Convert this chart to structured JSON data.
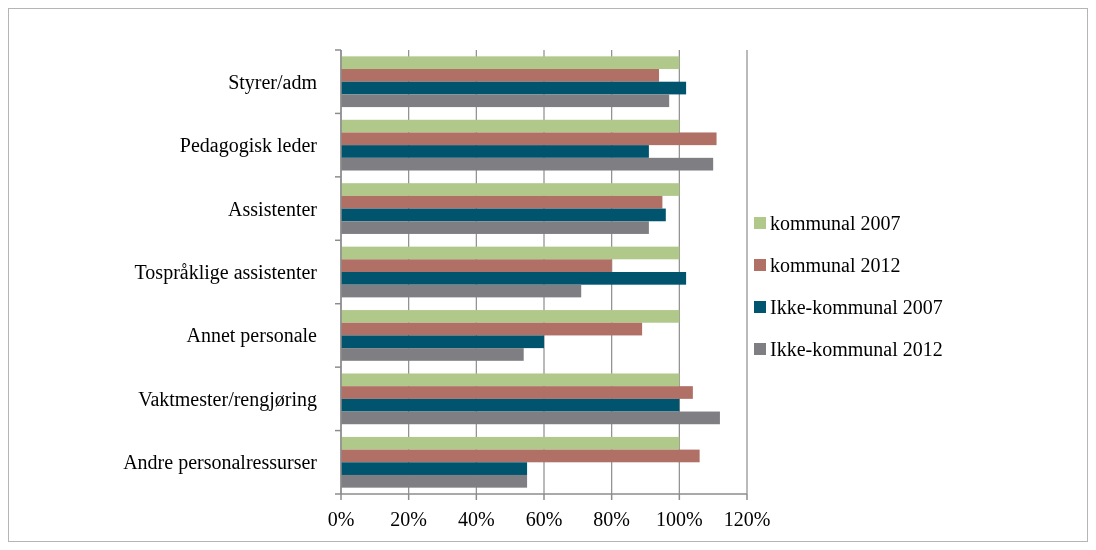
{
  "chart_data": {
    "type": "bar",
    "orientation": "horizontal",
    "categories": [
      "Styrer/adm",
      "Pedagogisk leder",
      "Assistenter",
      "Tospråklige assistenter",
      "Annet personale",
      "Vaktmester/rengjøring",
      "Andre personalressurser"
    ],
    "series": [
      {
        "name": "kommunal 2007",
        "color": "#b1c88b",
        "values": [
          100,
          100,
          100,
          100,
          100,
          100,
          100
        ]
      },
      {
        "name": "kommunal 2012",
        "color": "#b07066",
        "values": [
          94,
          111,
          95,
          80,
          89,
          104,
          106
        ]
      },
      {
        "name": "Ikke-kommunal 2007",
        "color": "#01546e",
        "values": [
          102,
          91,
          96,
          102,
          60,
          100,
          55
        ]
      },
      {
        "name": "Ikke-kommunal 2012",
        "color": "#7f7e83",
        "values": [
          97,
          110,
          91,
          71,
          54,
          112,
          55
        ]
      }
    ],
    "xlim": [
      0,
      120
    ],
    "xticks": [
      {
        "value": 0,
        "label": "0%"
      },
      {
        "value": 20,
        "label": "20%"
      },
      {
        "value": 40,
        "label": "40%"
      },
      {
        "value": 60,
        "label": "60%"
      },
      {
        "value": 80,
        "label": "80%"
      },
      {
        "value": 100,
        "label": "100%"
      },
      {
        "value": 120,
        "label": "120%"
      }
    ],
    "grid": "x",
    "legend": "right"
  }
}
